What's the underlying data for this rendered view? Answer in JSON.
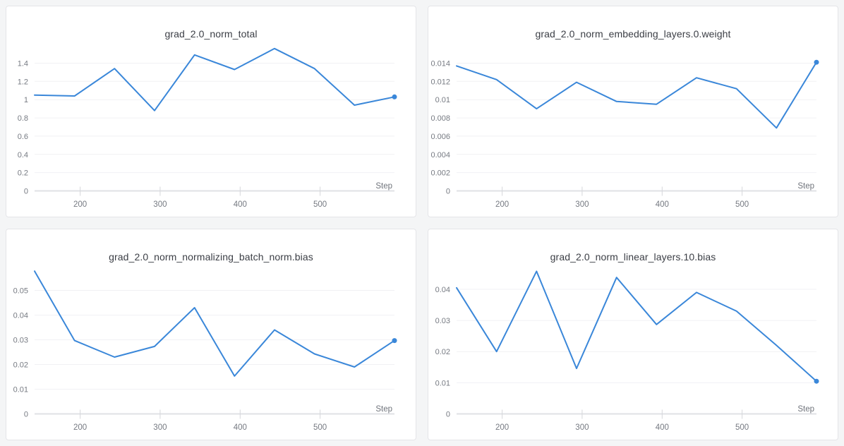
{
  "theme": {
    "page_background": "#f4f5f6",
    "card_background": "#ffffff",
    "card_border": "#e4e5e8",
    "line_color": "#3a87d9",
    "grid_color": "#f1f1f4",
    "axis_color": "#e0e1e5",
    "tick_mark_color": "#d6d7db",
    "tick_text_color": "#767a82",
    "xlabel_text_color": "#6f737b",
    "title_color": "#3b3e45"
  },
  "chart_data": [
    {
      "type": "line",
      "title": "grad_2.0_norm_total",
      "xlabel": "Step",
      "x": [
        143,
        193,
        243,
        293,
        343,
        393,
        443,
        493,
        543,
        593
      ],
      "values": [
        1.05,
        1.04,
        1.34,
        0.88,
        1.49,
        1.33,
        1.56,
        1.34,
        0.94,
        1.03
      ],
      "x_ticks": [
        200,
        300,
        400,
        500
      ],
      "y_ticks": [
        0,
        0.2,
        0.4,
        0.6,
        0.8,
        1.0,
        1.2,
        1.4
      ],
      "y_tick_labels": [
        "0",
        "0.2",
        "0.4",
        "0.6",
        "0.8",
        "1",
        "1.2",
        "1.4"
      ],
      "xlim": [
        143,
        593
      ],
      "ylim": [
        0,
        1.57
      ],
      "grid": "horizontal",
      "legend": "none",
      "end_marker": true
    },
    {
      "type": "line",
      "title": "grad_2.0_norm_embedding_layers.0.weight",
      "xlabel": "Step",
      "x": [
        143,
        193,
        243,
        293,
        343,
        393,
        443,
        493,
        543,
        593
      ],
      "values": [
        0.0137,
        0.0122,
        0.009,
        0.0119,
        0.0098,
        0.0095,
        0.0124,
        0.0112,
        0.0069,
        0.0141
      ],
      "x_ticks": [
        200,
        300,
        400,
        500
      ],
      "y_ticks": [
        0,
        0.002,
        0.004,
        0.006,
        0.008,
        0.01,
        0.012,
        0.014
      ],
      "y_tick_labels": [
        "0",
        "0.002",
        "0.004",
        "0.006",
        "0.008",
        "0.01",
        "0.012",
        "0.014"
      ],
      "xlim": [
        143,
        593
      ],
      "ylim": [
        0,
        0.0157
      ],
      "grid": "horizontal",
      "legend": "none",
      "end_marker": true
    },
    {
      "type": "line",
      "title": "grad_2.0_norm_normalizing_batch_norm.bias",
      "xlabel": "Step",
      "x": [
        143,
        193,
        243,
        293,
        343,
        393,
        443,
        493,
        543,
        593
      ],
      "values": [
        0.0578,
        0.0297,
        0.023,
        0.0273,
        0.043,
        0.0153,
        0.034,
        0.0243,
        0.019,
        0.0297
      ],
      "x_ticks": [
        200,
        300,
        400,
        500
      ],
      "y_ticks": [
        0,
        0.01,
        0.02,
        0.03,
        0.04,
        0.05
      ],
      "y_tick_labels": [
        "0",
        "0.01",
        "0.02",
        "0.03",
        "0.04",
        "0.05"
      ],
      "xlim": [
        143,
        593
      ],
      "ylim": [
        0,
        0.058
      ],
      "grid": "horizontal",
      "legend": "none",
      "end_marker": true
    },
    {
      "type": "line",
      "title": "grad_2.0_norm_linear_layers.10.bias",
      "xlabel": "Step",
      "x": [
        143,
        193,
        243,
        293,
        343,
        393,
        443,
        493,
        543,
        593
      ],
      "values": [
        0.0405,
        0.02,
        0.0458,
        0.0146,
        0.0438,
        0.0287,
        0.039,
        0.033,
        0.022,
        0.0105
      ],
      "x_ticks": [
        200,
        300,
        400,
        500
      ],
      "y_ticks": [
        0,
        0.01,
        0.02,
        0.03,
        0.04
      ],
      "y_tick_labels": [
        "0",
        "0.01",
        "0.02",
        "0.03",
        "0.04"
      ],
      "xlim": [
        143,
        593
      ],
      "ylim": [
        0,
        0.046
      ],
      "grid": "horizontal",
      "legend": "none",
      "end_marker": true
    }
  ]
}
